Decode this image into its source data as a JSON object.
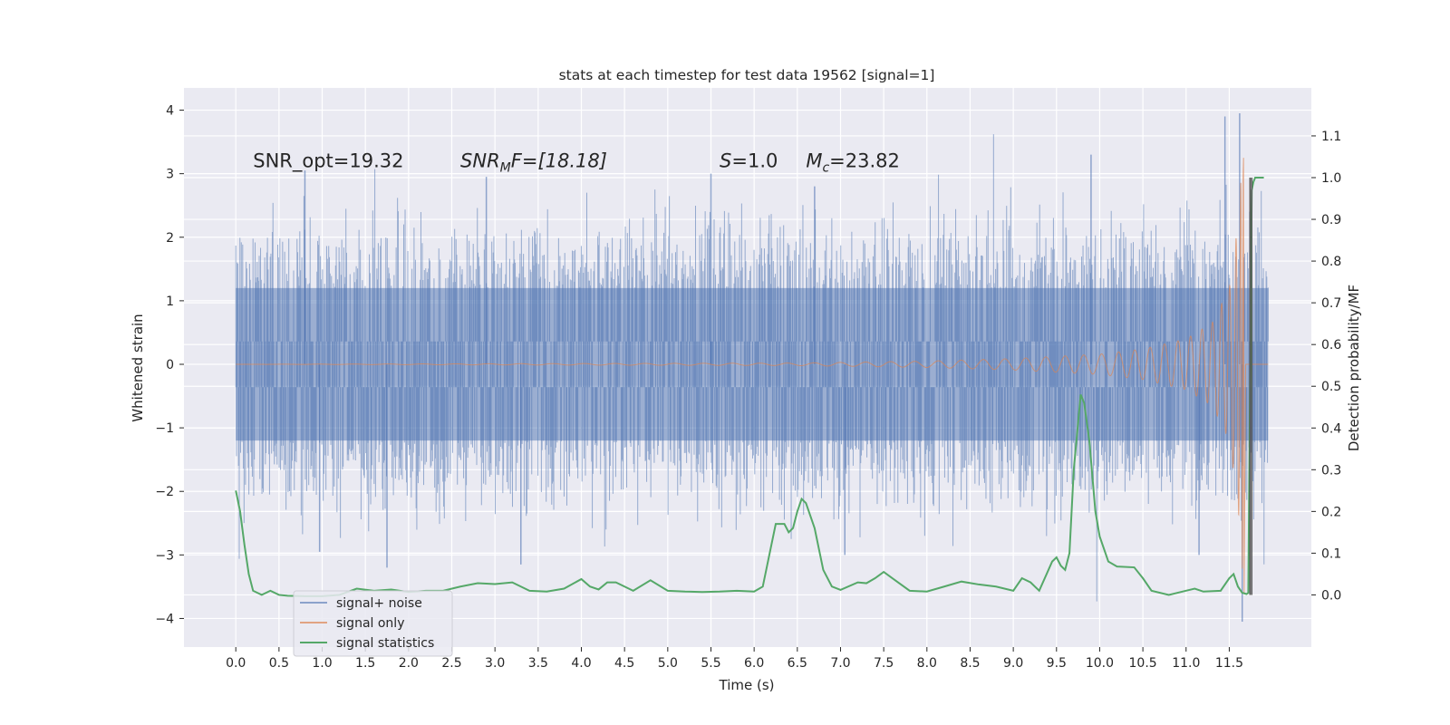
{
  "chart_data": {
    "type": "line",
    "title": "stats at each timestep for test data 19562 [signal=1]",
    "xlabel": "Time (s)",
    "ylabel": "Whitened strain",
    "y2label": "Detection probability/MF",
    "xlim": [
      -0.6,
      12.45
    ],
    "ylim": [
      -4.45,
      4.35
    ],
    "y2lim": [
      -0.125,
      1.215
    ],
    "x_ticks": [
      0.0,
      0.5,
      1.0,
      1.5,
      2.0,
      2.5,
      3.0,
      3.5,
      4.0,
      4.5,
      5.0,
      5.5,
      6.0,
      6.5,
      7.0,
      7.5,
      8.0,
      8.5,
      9.0,
      9.5,
      10.0,
      10.5,
      11.0,
      11.5
    ],
    "x_tick_labels": [
      "0.0",
      "0.5",
      "1.0",
      "1.5",
      "2.0",
      "2.5",
      "3.0",
      "3.5",
      "4.0",
      "4.5",
      "5.0",
      "5.5",
      "6.0",
      "6.5",
      "7.0",
      "7.5",
      "8.0",
      "8.5",
      "9.0",
      "9.5",
      "10.0",
      "10.5",
      "11.0",
      "11.5"
    ],
    "y_ticks": [
      -4,
      -3,
      -2,
      -1,
      0,
      1,
      2,
      3,
      4
    ],
    "y_tick_labels": [
      "−4",
      "−3",
      "−2",
      "−1",
      "0",
      "1",
      "2",
      "3",
      "4"
    ],
    "y2_ticks": [
      0.0,
      0.1,
      0.2,
      0.3,
      0.4,
      0.5,
      0.6,
      0.7,
      0.8,
      0.9,
      1.0,
      1.1
    ],
    "y2_tick_labels": [
      "0.0",
      "0.1",
      "0.2",
      "0.3",
      "0.4",
      "0.5",
      "0.6",
      "0.7",
      "0.8",
      "0.9",
      "1.0",
      "1.1"
    ],
    "grid": true,
    "legend_placement": "lower-left",
    "colors": {
      "background": "#eaeaf2",
      "grid": "#ffffff",
      "noise": "#4c72b0",
      "signal": "#dd8452",
      "stats": "#55a868"
    },
    "annotations": [
      {
        "kind": "plain",
        "text": "SNR_opt=19.32",
        "x": 0.2,
        "y": 3.1
      },
      {
        "kind": "snrmf",
        "main": "SNR",
        "sub": "M",
        "rest": "F=[18.18]",
        "x": 2.6,
        "y": 3.1
      },
      {
        "kind": "italic-var",
        "var": "S",
        "rest": "=1.0",
        "x": 5.6,
        "y": 3.1
      },
      {
        "kind": "mc",
        "var": "M",
        "sub": "c",
        "rest": "=23.82",
        "x": 6.6,
        "y": 3.1
      }
    ],
    "series": [
      {
        "name": "signal+ noise",
        "axis": "left",
        "kind": "noise-band",
        "x_range": [
          0.0,
          11.95
        ],
        "core_amplitude": 1.2,
        "typical_peaks": [
          2.4,
          -2.6
        ],
        "extreme_peaks": [
          {
            "x": 0.8,
            "y": 3.05
          },
          {
            "x": 0.97,
            "y": -2.95
          },
          {
            "x": 1.75,
            "y": -3.2
          },
          {
            "x": 2.9,
            "y": 2.95
          },
          {
            "x": 3.3,
            "y": -3.15
          },
          {
            "x": 5.5,
            "y": 3.0
          },
          {
            "x": 6.7,
            "y": 2.8
          },
          {
            "x": 7.05,
            "y": -3.0
          },
          {
            "x": 9.9,
            "y": 3.3
          },
          {
            "x": 11.15,
            "y": -3.0
          },
          {
            "x": 11.45,
            "y": 3.9
          },
          {
            "x": 11.62,
            "y": 3.95
          },
          {
            "x": 11.65,
            "y": -4.05
          }
        ]
      },
      {
        "name": "signal only",
        "axis": "left",
        "kind": "chirp",
        "x_range": [
          0.0,
          11.95
        ],
        "merger_time": 11.66,
        "peak_values": [
          3.25,
          -3.6
        ],
        "envelope": {
          "x": [
            6.5,
            8.0,
            9.0,
            10.0,
            10.5,
            11.0,
            11.3,
            11.5,
            11.6,
            11.66
          ],
          "y": [
            0.02,
            0.05,
            0.09,
            0.16,
            0.24,
            0.4,
            0.65,
            1.2,
            2.2,
            3.4
          ]
        }
      },
      {
        "name": "signal statistics",
        "axis": "right",
        "kind": "line",
        "x": [
          0.0,
          0.05,
          0.1,
          0.15,
          0.2,
          0.3,
          0.4,
          0.5,
          0.6,
          0.8,
          1.0,
          1.2,
          1.4,
          1.6,
          1.8,
          2.0,
          2.2,
          2.4,
          2.6,
          2.8,
          3.0,
          3.2,
          3.4,
          3.6,
          3.8,
          4.0,
          4.1,
          4.2,
          4.3,
          4.4,
          4.6,
          4.8,
          5.0,
          5.2,
          5.4,
          5.6,
          5.8,
          6.0,
          6.1,
          6.25,
          6.35,
          6.4,
          6.45,
          6.5,
          6.55,
          6.6,
          6.7,
          6.8,
          6.9,
          7.0,
          7.2,
          7.3,
          7.4,
          7.5,
          7.6,
          7.8,
          8.0,
          8.2,
          8.4,
          8.6,
          8.8,
          9.0,
          9.1,
          9.2,
          9.3,
          9.45,
          9.5,
          9.55,
          9.6,
          9.65,
          9.7,
          9.78,
          9.82,
          9.88,
          9.95,
          10.0,
          10.1,
          10.2,
          10.4,
          10.5,
          10.6,
          10.8,
          11.0,
          11.1,
          11.2,
          11.4,
          11.5,
          11.55,
          11.6,
          11.65,
          11.7,
          11.72,
          11.74,
          11.76,
          11.78,
          11.8,
          11.83,
          11.86,
          11.9
        ],
        "values": [
          0.25,
          0.2,
          0.12,
          0.05,
          0.01,
          0.0,
          0.01,
          0.0,
          -0.002,
          -0.003,
          -0.003,
          0.0,
          0.015,
          0.01,
          0.013,
          0.007,
          0.01,
          0.01,
          0.02,
          0.028,
          0.026,
          0.03,
          0.01,
          0.008,
          0.015,
          0.038,
          0.02,
          0.013,
          0.03,
          0.03,
          0.01,
          0.035,
          0.01,
          0.008,
          0.007,
          0.008,
          0.01,
          0.008,
          0.02,
          0.17,
          0.17,
          0.15,
          0.16,
          0.2,
          0.23,
          0.22,
          0.16,
          0.06,
          0.02,
          0.012,
          0.03,
          0.028,
          0.04,
          0.055,
          0.04,
          0.01,
          0.008,
          0.02,
          0.032,
          0.025,
          0.02,
          0.01,
          0.04,
          0.03,
          0.01,
          0.08,
          0.09,
          0.07,
          0.06,
          0.1,
          0.3,
          0.48,
          0.46,
          0.37,
          0.2,
          0.14,
          0.08,
          0.068,
          0.066,
          0.04,
          0.01,
          0.0,
          0.01,
          0.015,
          0.008,
          0.01,
          0.04,
          0.05,
          0.02,
          0.005,
          0.002,
          0.005,
          0.5,
          0.97,
          0.99,
          1.0,
          1.0,
          1.0,
          1.0
        ]
      }
    ],
    "marker_lines": {
      "axis": "right",
      "x": [
        11.74,
        11.76
      ],
      "from": 0.0,
      "to": 1.0
    }
  }
}
